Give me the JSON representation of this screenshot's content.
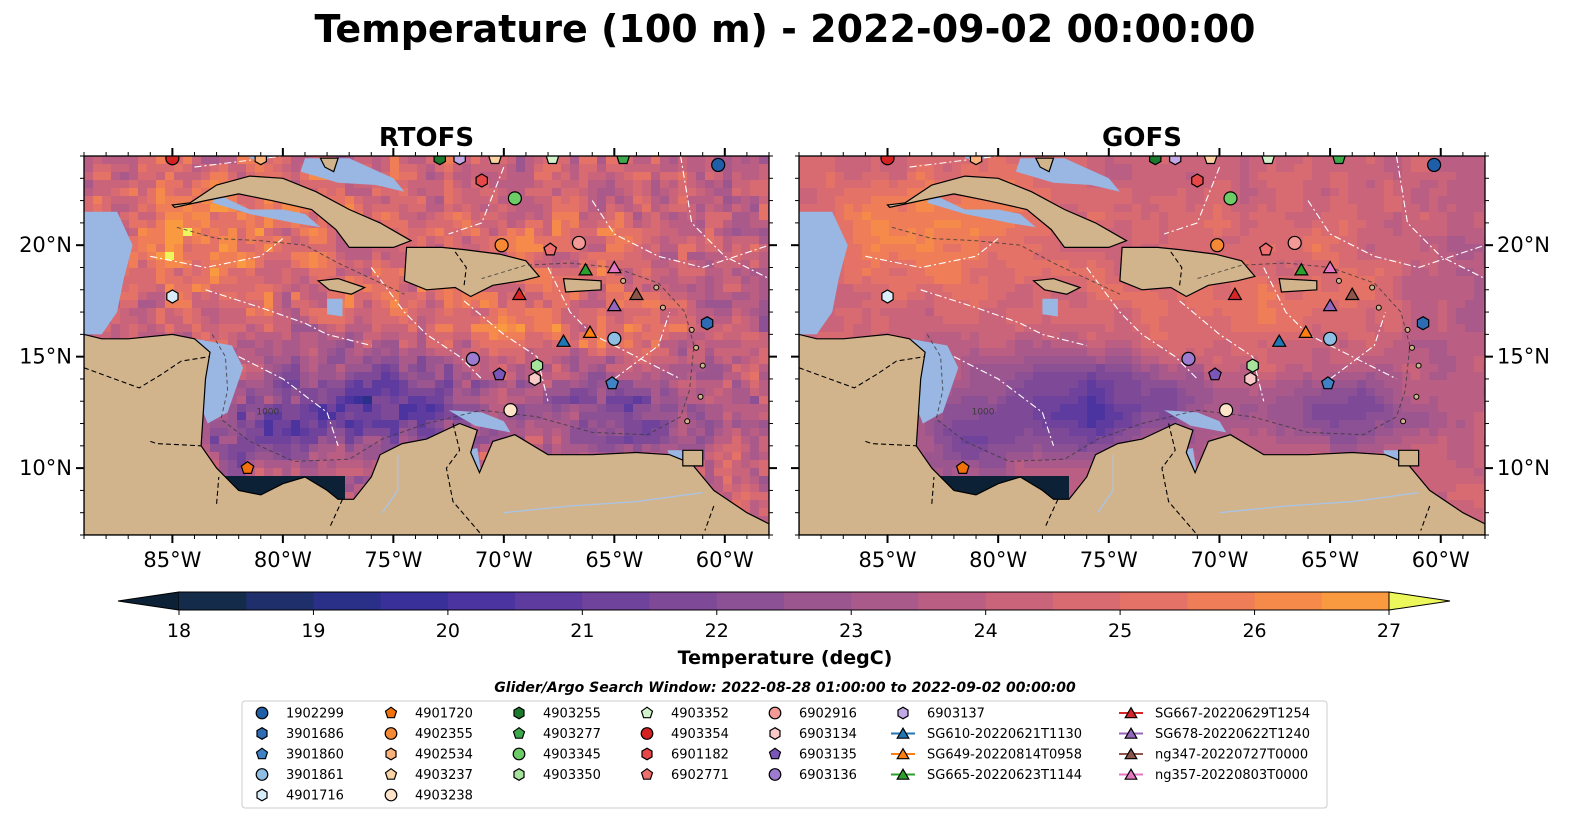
{
  "figure": {
    "title": "Temperature (100 m) - 2022-09-02 00:00:00",
    "search_window_label": "Glider/Argo Search Window: 2022-08-28 01:00:00 to 2022-09-02 00:00:00"
  },
  "chart_data": [
    {
      "type": "heatmap",
      "title": "RTOFS",
      "variable": "Temperature at 100 m",
      "xlim": [
        -89,
        -58
      ],
      "ylim": [
        7,
        24
      ],
      "x_ticks": [
        "85°W",
        "80°W",
        "75°W",
        "70°W",
        "65°W",
        "60°W"
      ],
      "y_ticks": [
        "10°N",
        "15°N",
        "20°N"
      ],
      "tick_values_x": [
        -85,
        -80,
        -75,
        -70,
        -65,
        -60
      ],
      "tick_values_y": [
        10,
        15,
        20
      ],
      "contour_label": "1000"
    },
    {
      "type": "heatmap",
      "title": "GOFS",
      "variable": "Temperature at 100 m",
      "xlim": [
        -89,
        -58
      ],
      "ylim": [
        7,
        24
      ],
      "x_ticks": [
        "85°W",
        "80°W",
        "75°W",
        "70°W",
        "65°W",
        "60°W"
      ],
      "y_ticks": [
        "10°N",
        "15°N",
        "20°N"
      ],
      "tick_values_x": [
        -85,
        -80,
        -75,
        -70,
        -65,
        -60
      ],
      "tick_values_y": [
        10,
        15,
        20
      ],
      "contour_label": "1000"
    }
  ],
  "colorbar": {
    "label": "Temperature (degC)",
    "min": 18,
    "max": 27,
    "step": 0.5,
    "ticks": [
      "18",
      "19",
      "20",
      "21",
      "22",
      "23",
      "24",
      "25",
      "26",
      "27"
    ],
    "tick_values": [
      18,
      19,
      20,
      21,
      22,
      23,
      24,
      25,
      26,
      27
    ],
    "colors": [
      "#0c2135",
      "#142b4a",
      "#1f2f6b",
      "#2a2f88",
      "#3a309a",
      "#4c34a0",
      "#5e3b9f",
      "#6f439c",
      "#7e4a98",
      "#8c5094",
      "#9b558f",
      "#aa5a8a",
      "#ba5f83",
      "#c9647b",
      "#d86a72",
      "#e47266",
      "#ee7d58",
      "#f58a4a",
      "#f99a41",
      "#fbac3c",
      "#fbbf3c",
      "#f8d341",
      "#f3e84a",
      "#ebf75a"
    ]
  },
  "markers": [
    {
      "id": "1902299",
      "shape": "circle",
      "color": "#1f5fa8",
      "lon": -60.3,
      "lat": 23.6
    },
    {
      "id": "3901686",
      "shape": "hexagon",
      "color": "#2d6cb4",
      "lon": -60.8,
      "lat": 16.5
    },
    {
      "id": "3901860",
      "shape": "pentagon",
      "color": "#3f82c6",
      "lon": -65.1,
      "lat": 13.8
    },
    {
      "id": "3901861",
      "shape": "circle",
      "color": "#8ebee4",
      "lon": -65.0,
      "lat": 15.8
    },
    {
      "id": "4901716",
      "shape": "hexagon",
      "color": "#d8ecfa",
      "lon": -85.0,
      "lat": 17.7
    },
    {
      "id": "4901720",
      "shape": "pentagon",
      "color": "#f2720a",
      "lon": -81.6,
      "lat": 10.0
    },
    {
      "id": "4902355",
      "shape": "circle",
      "color": "#f68a34",
      "lon": -70.1,
      "lat": 20.0
    },
    {
      "id": "4902534",
      "shape": "hexagon",
      "color": "#fab27a",
      "lon": -81.0,
      "lat": 23.9
    },
    {
      "id": "4903237",
      "shape": "pentagon",
      "color": "#fcd3a3",
      "lon": -70.4,
      "lat": 23.9
    },
    {
      "id": "4903238",
      "shape": "circle",
      "color": "#fde4c8",
      "lon": -69.7,
      "lat": 12.6
    },
    {
      "id": "4903255",
      "shape": "hexagon",
      "color": "#1c7a2c",
      "lon": -72.9,
      "lat": 23.9
    },
    {
      "id": "4903277",
      "shape": "pentagon",
      "color": "#3ca94a",
      "lon": -64.6,
      "lat": 23.9
    },
    {
      "id": "4903345",
      "shape": "circle",
      "color": "#6ccc66",
      "lon": -69.5,
      "lat": 22.1
    },
    {
      "id": "4903350",
      "shape": "hexagon",
      "color": "#a6e39c",
      "lon": -68.5,
      "lat": 14.6
    },
    {
      "id": "4903352",
      "shape": "pentagon",
      "color": "#d2f2cc",
      "lon": -67.8,
      "lat": 23.9
    },
    {
      "id": "4903354",
      "shape": "circle",
      "color": "#d42121",
      "lon": -85.0,
      "lat": 23.9
    },
    {
      "id": "6901182",
      "shape": "hexagon",
      "color": "#e84747",
      "lon": -71.0,
      "lat": 22.9
    },
    {
      "id": "6902771",
      "shape": "pentagon",
      "color": "#ef6e6e",
      "lon": -67.9,
      "lat": 19.8
    },
    {
      "id": "6902916",
      "shape": "circle",
      "color": "#f49a96",
      "lon": -66.6,
      "lat": 20.1
    },
    {
      "id": "6903134",
      "shape": "hexagon",
      "color": "#f9c9c7",
      "lon": -68.6,
      "lat": 14.0
    },
    {
      "id": "6903135",
      "shape": "pentagon",
      "color": "#7a56b8",
      "lon": -70.2,
      "lat": 14.2
    },
    {
      "id": "6903136",
      "shape": "circle",
      "color": "#9c7bd0",
      "lon": -71.4,
      "lat": 14.9
    },
    {
      "id": "6903137",
      "shape": "hexagon",
      "color": "#c3a8e6",
      "lon": -72.0,
      "lat": 23.9
    },
    {
      "id": "SG610-20220621T1130",
      "shape": "triangle",
      "color": "#1f77b4",
      "lon": -67.3,
      "lat": 15.7
    },
    {
      "id": "SG649-20220814T0958",
      "shape": "triangle",
      "color": "#ff7f0e",
      "lon": -66.1,
      "lat": 16.1
    },
    {
      "id": "SG665-20220623T1144",
      "shape": "triangle",
      "color": "#2ca02c",
      "lon": -66.3,
      "lat": 18.9
    },
    {
      "id": "SG667-20220629T1254",
      "shape": "triangle",
      "color": "#d62728",
      "lon": -69.3,
      "lat": 17.8
    },
    {
      "id": "SG678-20220622T1240",
      "shape": "triangle",
      "color": "#9467bd",
      "lon": -65.0,
      "lat": 17.3
    },
    {
      "id": "ng347-20220727T0000",
      "shape": "triangle",
      "color": "#8c564b",
      "lon": -64.0,
      "lat": 17.8
    },
    {
      "id": "ng357-20220803T0000",
      "shape": "triangle",
      "color": "#e377c2",
      "lon": -65.0,
      "lat": 19.0
    }
  ],
  "legend": {
    "columns": [
      [
        "1902299",
        "3901686",
        "3901860",
        "3901861",
        "4901716"
      ],
      [
        "4901720",
        "4902355",
        "4902534",
        "4903237",
        "4903238"
      ],
      [
        "4903255",
        "4903277",
        "4903345",
        "4903350"
      ],
      [
        "4903352",
        "4903354",
        "6901182",
        "6902771"
      ],
      [
        "6902916",
        "6903134",
        "6903135",
        "6903136"
      ],
      [
        "6903137",
        "SG610-20220621T1130",
        "SG649-20220814T0958",
        "SG665-20220623T1144"
      ],
      [
        "SG667-20220629T1254",
        "SG678-20220622T1240",
        "ng347-20220727T0000",
        "ng357-20220803T0000"
      ]
    ]
  },
  "colors": {
    "land": "#d2b48c",
    "shallow_water": "#9ab6e2",
    "dark_land": "#0c2131"
  }
}
